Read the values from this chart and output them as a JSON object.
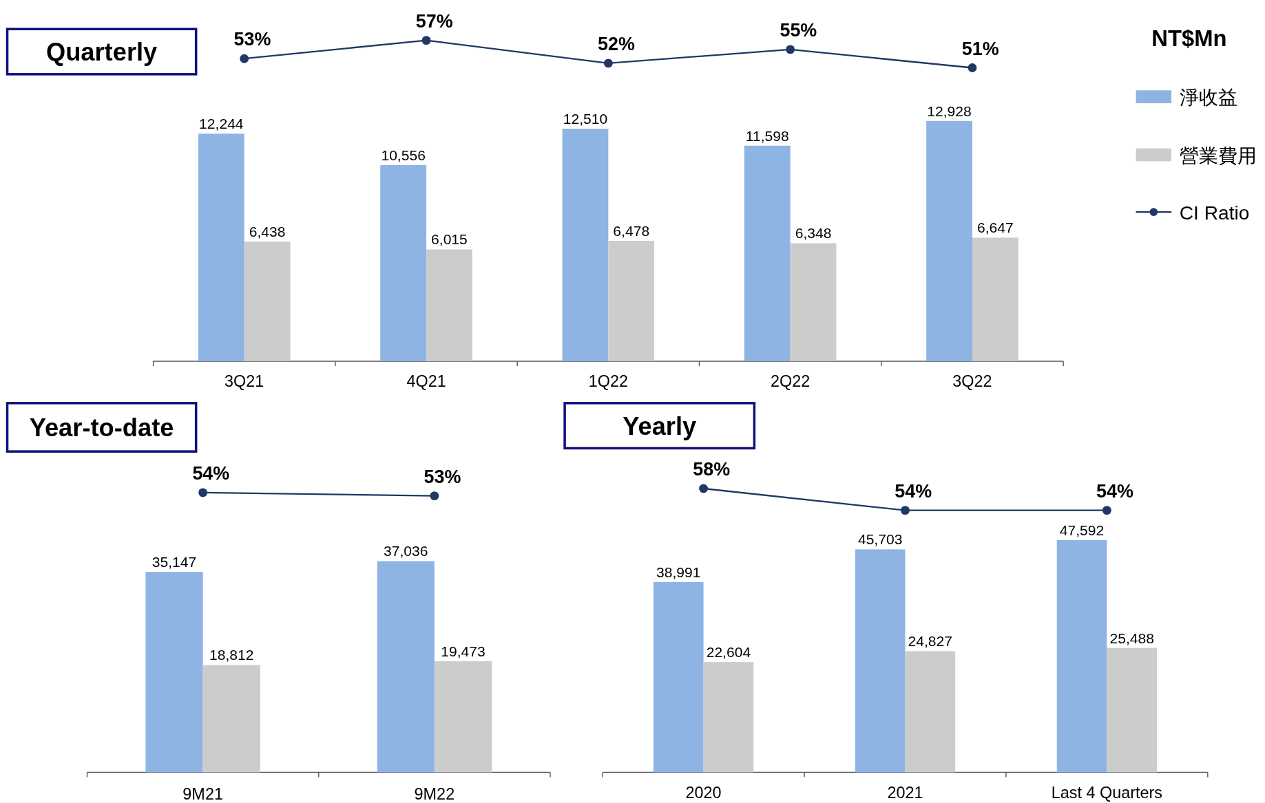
{
  "chart_data": [
    {
      "type": "line",
      "title": "Quarterly",
      "legend": "right",
      "categories": [
        null,
        null,
        null,
        null,
        null
      ],
      "series": [
        {
          "name": "CI Ratio",
          "marker": "circle",
          "color": "#1f3864",
          "values": [
            53,
            57,
            52,
            55,
            51
          ],
          "value_labels": [
            "53%",
            "57%",
            "52%",
            "55%",
            "51%"
          ]
        }
      ]
    },
    {
      "type": "bar",
      "legend_title": "NT$Mn",
      "legend": "right",
      "categories": [
        "3Q21",
        "4Q21",
        "1Q22",
        "2Q22",
        "3Q22"
      ],
      "series": [
        {
          "name": "淨收益",
          "color": "#8eb4e3",
          "values": [
            12244,
            10556,
            12510,
            11598,
            12928
          ],
          "value_labels": [
            "12,244",
            "10,556",
            "12,510",
            "11,598",
            "12,928"
          ]
        },
        {
          "name": "營業費用",
          "color": "#cccccc",
          "values": [
            6438,
            6015,
            6478,
            6348,
            6647
          ],
          "value_labels": [
            "6,438",
            "6,015",
            "6,478",
            "6,348",
            "6,647"
          ]
        }
      ]
    },
    {
      "type": "line",
      "title": "Year-to-date",
      "categories": [
        null,
        null
      ],
      "series": [
        {
          "marker": "circle",
          "color": "#1f3864",
          "values": [
            54,
            53
          ],
          "value_labels": [
            "54%",
            "53%"
          ]
        }
      ]
    },
    {
      "type": "bar",
      "categories": [
        "9M21",
        "9M22"
      ],
      "series": [
        {
          "color": "#8eb4e3",
          "values": [
            35147,
            37036
          ],
          "value_labels": [
            "35,147",
            "37,036"
          ]
        },
        {
          "color": "#cccccc",
          "values": [
            18812,
            19473
          ],
          "value_labels": [
            "18,812",
            "19,473"
          ]
        }
      ]
    },
    {
      "type": "line",
      "title": "Yearly",
      "categories": [
        null,
        null,
        null
      ],
      "series": [
        {
          "marker": "circle",
          "color": "#1f3864",
          "values": [
            58,
            54,
            54
          ],
          "value_labels": [
            "58%",
            "54%",
            "54%"
          ]
        }
      ]
    },
    {
      "type": "bar",
      "categories": [
        "2020",
        "2021",
        "Last 4 Quarters"
      ],
      "series": [
        {
          "color": "#8eb4e3",
          "values": [
            38991,
            45703,
            47592
          ],
          "value_labels": [
            "38,991",
            "45,703",
            "47,592"
          ]
        },
        {
          "color": "#cccccc",
          "values": [
            22604,
            24827,
            25488
          ],
          "value_labels": [
            "22,604",
            "24,827",
            "25,488"
          ]
        }
      ]
    }
  ]
}
